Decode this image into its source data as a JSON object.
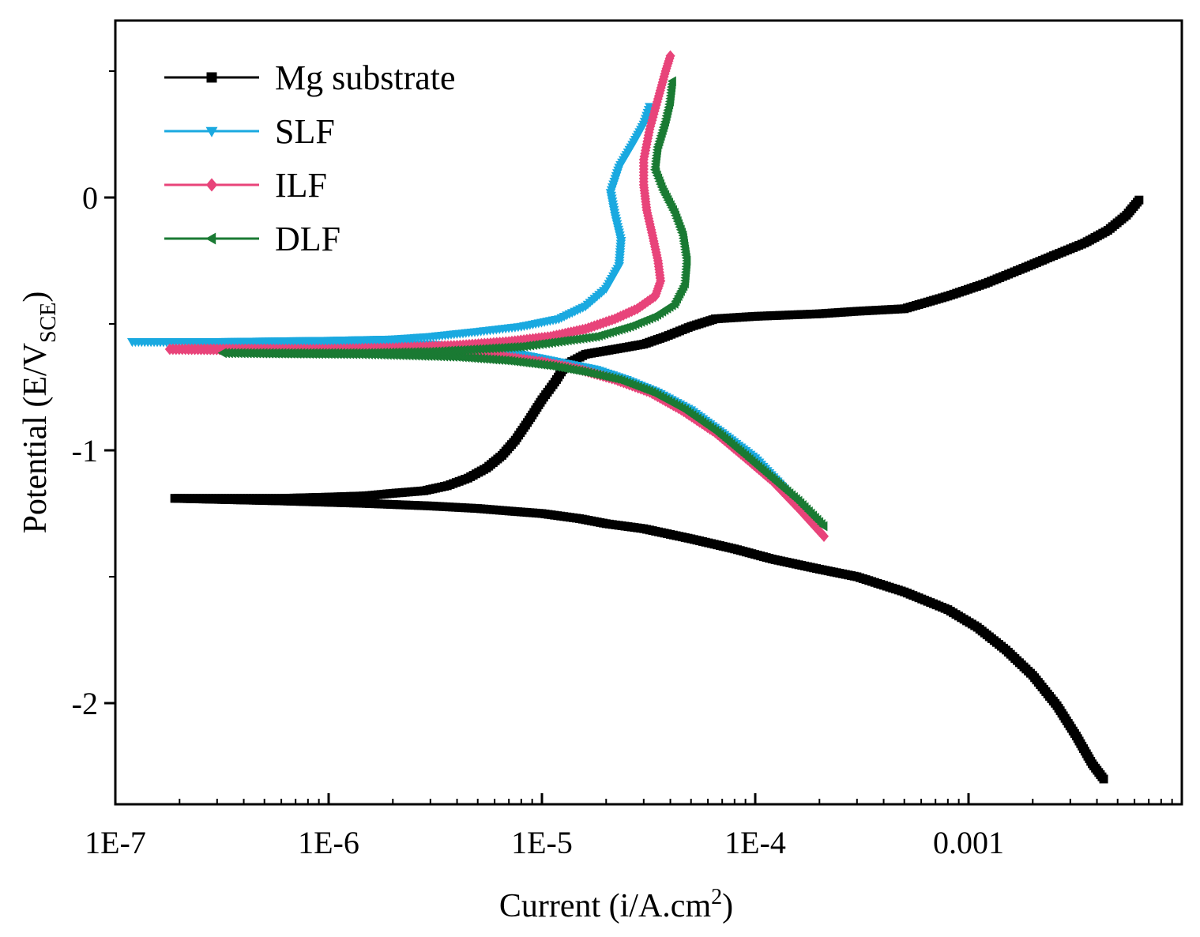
{
  "chart_data": {
    "type": "line",
    "title": "",
    "xlabel": "Current (i/A.cm",
    "xlabel_sup": "2",
    "xlabel_close": ")",
    "ylabel": "Potential (E/V",
    "ylabel_sub": "SCE",
    "ylabel_close": ")",
    "xscale": "log",
    "xlim": [
      1e-07,
      0.01
    ],
    "ylim": [
      -2.4,
      0.7
    ],
    "x_ticks": [
      {
        "value": 1e-07,
        "label": "1E-7"
      },
      {
        "value": 1e-06,
        "label": "1E-6"
      },
      {
        "value": 1e-05,
        "label": "1E-5"
      },
      {
        "value": 0.0001,
        "label": "1E-4"
      },
      {
        "value": 0.001,
        "label": "0.001"
      }
    ],
    "y_ticks": [
      {
        "value": 0,
        "label": "0"
      },
      {
        "value": -1,
        "label": "-1"
      },
      {
        "value": -2,
        "label": "-2"
      }
    ],
    "legend_position": "top-left",
    "series": [
      {
        "name": "Mg substrate",
        "color": "#000000",
        "marker": "square",
        "anodic": [
          [
            1.9e-07,
            -1.19
          ],
          [
            6e-07,
            -1.19
          ],
          [
            1e-06,
            -1.185
          ],
          [
            1.5e-06,
            -1.18
          ],
          [
            2e-06,
            -1.17
          ],
          [
            2.8e-06,
            -1.16
          ],
          [
            3.6e-06,
            -1.14
          ],
          [
            4.5e-06,
            -1.11
          ],
          [
            5.5e-06,
            -1.07
          ],
          [
            6.5e-06,
            -1.02
          ],
          [
            7.5e-06,
            -0.96
          ],
          [
            8.7e-06,
            -0.88
          ],
          [
            1e-05,
            -0.8
          ],
          [
            1.15e-05,
            -0.73
          ],
          [
            1.3e-05,
            -0.66
          ],
          [
            1.6e-05,
            -0.62
          ],
          [
            2.2e-05,
            -0.6
          ],
          [
            3e-05,
            -0.58
          ],
          [
            3.8e-05,
            -0.55
          ],
          [
            5e-05,
            -0.51
          ],
          [
            6.5e-05,
            -0.48
          ],
          [
            0.0001,
            -0.47
          ],
          [
            0.0002,
            -0.46
          ],
          [
            0.0003,
            -0.45
          ],
          [
            0.0005,
            -0.44
          ],
          [
            0.0008,
            -0.39
          ],
          [
            0.0012,
            -0.34
          ],
          [
            0.0018,
            -0.28
          ],
          [
            0.0025,
            -0.23
          ],
          [
            0.0035,
            -0.18
          ],
          [
            0.0045,
            -0.13
          ],
          [
            0.0055,
            -0.07
          ],
          [
            0.0063,
            -0.01
          ]
        ],
        "cathodic": [
          [
            1.9e-07,
            -1.19
          ],
          [
            6e-07,
            -1.2
          ],
          [
            1.5e-06,
            -1.21
          ],
          [
            3e-06,
            -1.22
          ],
          [
            5e-06,
            -1.23
          ],
          [
            7e-06,
            -1.24
          ],
          [
            1e-05,
            -1.25
          ],
          [
            1.5e-05,
            -1.27
          ],
          [
            2e-05,
            -1.29
          ],
          [
            3e-05,
            -1.31
          ],
          [
            5e-05,
            -1.35
          ],
          [
            8e-05,
            -1.39
          ],
          [
            0.00012,
            -1.43
          ],
          [
            0.0002,
            -1.47
          ],
          [
            0.0003,
            -1.5
          ],
          [
            0.0005,
            -1.56
          ],
          [
            0.0008,
            -1.63
          ],
          [
            0.0011,
            -1.7
          ],
          [
            0.0015,
            -1.79
          ],
          [
            0.002,
            -1.89
          ],
          [
            0.0026,
            -2.01
          ],
          [
            0.0032,
            -2.13
          ],
          [
            0.0038,
            -2.24
          ],
          [
            0.0043,
            -2.3
          ]
        ]
      },
      {
        "name": "SLF",
        "color": "#1aa9e0",
        "marker": "triangle-down",
        "anodic": [
          [
            1.2e-07,
            -0.57
          ],
          [
            3e-07,
            -0.57
          ],
          [
            1e-06,
            -0.565
          ],
          [
            2e-06,
            -0.56
          ],
          [
            3e-06,
            -0.55
          ],
          [
            5e-06,
            -0.53
          ],
          [
            8e-06,
            -0.51
          ],
          [
            1.2e-05,
            -0.48
          ],
          [
            1.6e-05,
            -0.43
          ],
          [
            2e-05,
            -0.36
          ],
          [
            2.3e-05,
            -0.27
          ],
          [
            2.35e-05,
            -0.17
          ],
          [
            2.2e-05,
            -0.07
          ],
          [
            2.1e-05,
            0.02
          ],
          [
            2.3e-05,
            0.12
          ],
          [
            2.7e-05,
            0.22
          ],
          [
            3e-05,
            0.29
          ],
          [
            3.2e-05,
            0.36
          ]
        ],
        "cathodic": [
          [
            1.2e-07,
            -0.57
          ],
          [
            1e-06,
            -0.575
          ],
          [
            3e-06,
            -0.58
          ],
          [
            5e-06,
            -0.6
          ],
          [
            8e-06,
            -0.62
          ],
          [
            1.2e-05,
            -0.65
          ],
          [
            1.8e-05,
            -0.68
          ],
          [
            2.5e-05,
            -0.72
          ],
          [
            3.5e-05,
            -0.77
          ],
          [
            5e-05,
            -0.84
          ],
          [
            7e-05,
            -0.93
          ],
          [
            0.0001,
            -1.03
          ],
          [
            0.00013,
            -1.13
          ],
          [
            0.00016,
            -1.23
          ]
        ]
      },
      {
        "name": "ILF",
        "color": "#e8447a",
        "marker": "diamond",
        "anodic": [
          [
            1.8e-07,
            -0.6
          ],
          [
            5e-07,
            -0.6
          ],
          [
            1e-06,
            -0.6
          ],
          [
            2e-06,
            -0.595
          ],
          [
            4e-06,
            -0.585
          ],
          [
            7e-06,
            -0.57
          ],
          [
            1.1e-05,
            -0.55
          ],
          [
            1.6e-05,
            -0.52
          ],
          [
            2.2e-05,
            -0.48
          ],
          [
            2.8e-05,
            -0.44
          ],
          [
            3.4e-05,
            -0.39
          ],
          [
            3.6e-05,
            -0.33
          ],
          [
            3.5e-05,
            -0.25
          ],
          [
            3.3e-05,
            -0.15
          ],
          [
            3.1e-05,
            -0.05
          ],
          [
            3e-05,
            0.05
          ],
          [
            3e-05,
            0.15
          ],
          [
            3.2e-05,
            0.27
          ],
          [
            3.5e-05,
            0.39
          ],
          [
            3.8e-05,
            0.5
          ],
          [
            4e-05,
            0.56
          ]
        ],
        "cathodic": [
          [
            1.8e-07,
            -0.6
          ],
          [
            1e-06,
            -0.605
          ],
          [
            3e-06,
            -0.61
          ],
          [
            6e-06,
            -0.625
          ],
          [
            1e-05,
            -0.65
          ],
          [
            1.5e-05,
            -0.68
          ],
          [
            2.2e-05,
            -0.72
          ],
          [
            3.2e-05,
            -0.77
          ],
          [
            4.5e-05,
            -0.84
          ],
          [
            6.5e-05,
            -0.93
          ],
          [
            9e-05,
            -1.03
          ],
          [
            0.00012,
            -1.12
          ],
          [
            0.00016,
            -1.23
          ],
          [
            0.00021,
            -1.34
          ]
        ]
      },
      {
        "name": "DLF",
        "color": "#1a7a33",
        "marker": "triangle-left",
        "anodic": [
          [
            3.2e-07,
            -0.615
          ],
          [
            8e-07,
            -0.615
          ],
          [
            1.5e-06,
            -0.615
          ],
          [
            3e-06,
            -0.61
          ],
          [
            5e-06,
            -0.6
          ],
          [
            8e-06,
            -0.59
          ],
          [
            1.2e-05,
            -0.57
          ],
          [
            1.8e-05,
            -0.55
          ],
          [
            2.6e-05,
            -0.51
          ],
          [
            3.4e-05,
            -0.47
          ],
          [
            4.2e-05,
            -0.42
          ],
          [
            4.7e-05,
            -0.34
          ],
          [
            4.8e-05,
            -0.25
          ],
          [
            4.6e-05,
            -0.15
          ],
          [
            4.2e-05,
            -0.06
          ],
          [
            3.7e-05,
            0.03
          ],
          [
            3.4e-05,
            0.11
          ],
          [
            3.5e-05,
            0.2
          ],
          [
            3.8e-05,
            0.3
          ],
          [
            4e-05,
            0.38
          ],
          [
            4.1e-05,
            0.46
          ]
        ],
        "cathodic": [
          [
            3.2e-07,
            -0.615
          ],
          [
            1.5e-06,
            -0.62
          ],
          [
            4e-06,
            -0.63
          ],
          [
            7e-06,
            -0.645
          ],
          [
            1.1e-05,
            -0.665
          ],
          [
            1.6e-05,
            -0.69
          ],
          [
            2.3e-05,
            -0.72
          ],
          [
            3.3e-05,
            -0.77
          ],
          [
            4.7e-05,
            -0.84
          ],
          [
            6.7e-05,
            -0.93
          ],
          [
            9e-05,
            -1.02
          ],
          [
            0.00012,
            -1.11
          ],
          [
            0.00016,
            -1.2
          ],
          [
            0.00021,
            -1.3
          ]
        ]
      }
    ]
  }
}
